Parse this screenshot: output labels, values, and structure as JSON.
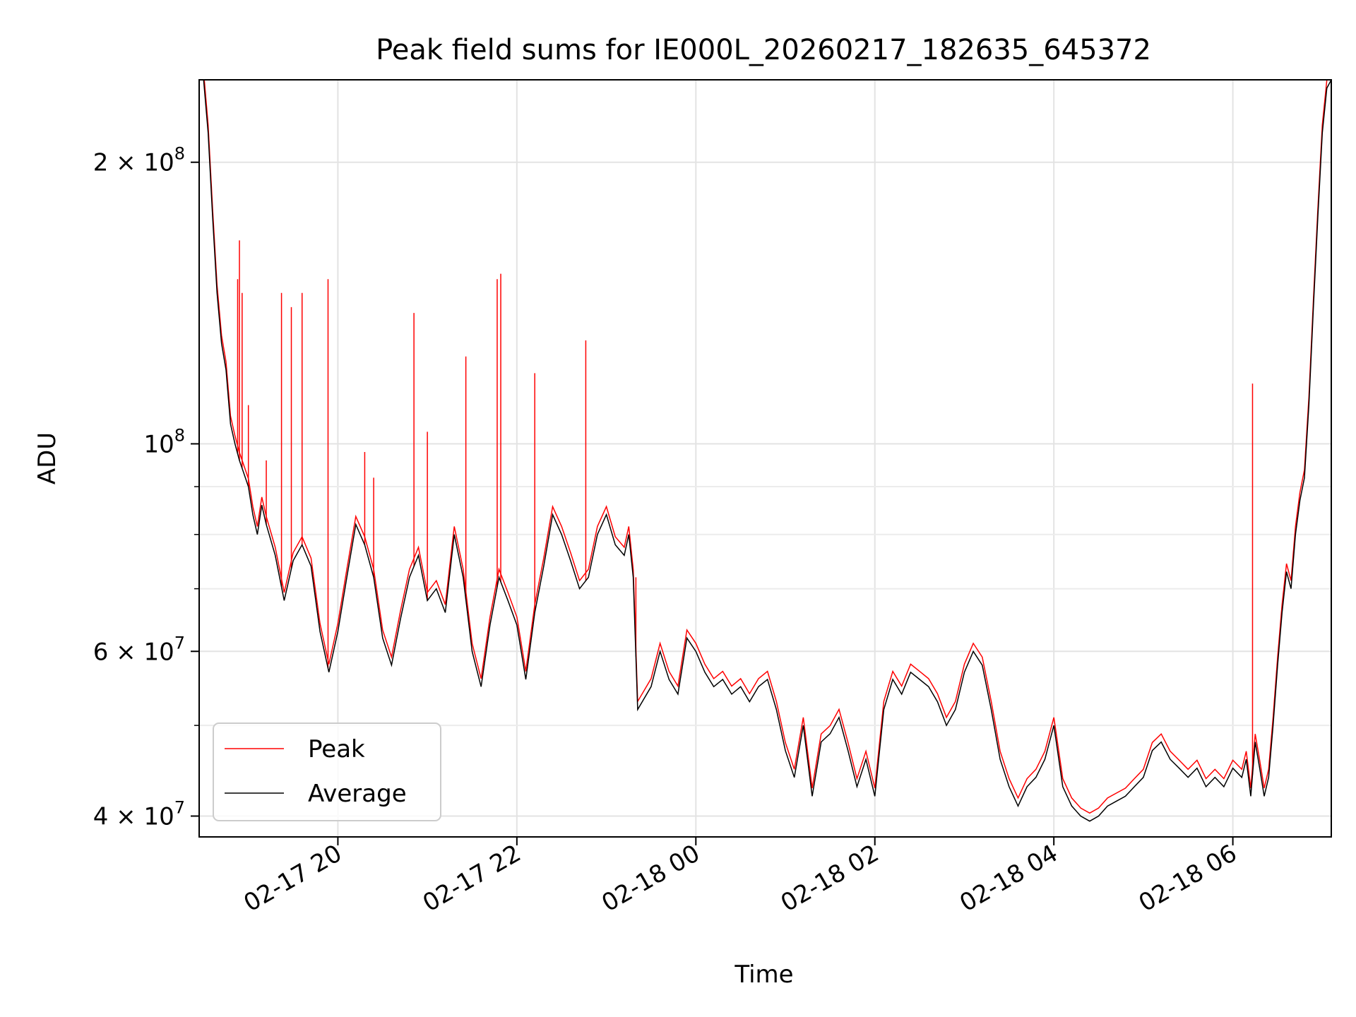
{
  "chart_data": {
    "type": "line",
    "title": "Peak field sums for IE000L_20260217_182635_645372",
    "xlabel": "Time",
    "ylabel": "ADU",
    "yscale": "log",
    "ylim": [
      38000000,
      245000000
    ],
    "xlim_hours": [
      18.45,
      31.1
    ],
    "grid": true,
    "legend": {
      "location": "lower-left",
      "entries": [
        "Peak",
        "Average"
      ]
    },
    "x_ticks": [
      {
        "hour": 20,
        "label": "02-17 20"
      },
      {
        "hour": 22,
        "label": "02-17 22"
      },
      {
        "hour": 24,
        "label": "02-18 00"
      },
      {
        "hour": 26,
        "label": "02-18 02"
      },
      {
        "hour": 28,
        "label": "02-18 04"
      },
      {
        "hour": 30,
        "label": "02-18 06"
      }
    ],
    "y_ticks": [
      {
        "value": 200000000,
        "mant": "2",
        "exp": "8"
      },
      {
        "value": 100000000,
        "mant": "",
        "exp": "8"
      },
      {
        "value": 60000000,
        "mant": "6",
        "exp": "7"
      },
      {
        "value": 40000000,
        "mant": "4",
        "exp": "7"
      }
    ],
    "y_minor_ticks": [
      50000000,
      70000000,
      80000000,
      90000000
    ],
    "series": [
      {
        "name": "Average",
        "color": "#000000",
        "points": [
          [
            18.5,
            245000000
          ],
          [
            18.55,
            215000000
          ],
          [
            18.6,
            175000000
          ],
          [
            18.65,
            145000000
          ],
          [
            18.7,
            128000000
          ],
          [
            18.75,
            120000000
          ],
          [
            18.8,
            105000000
          ],
          [
            18.85,
            100000000
          ],
          [
            18.9,
            96000000
          ],
          [
            19.0,
            90000000
          ],
          [
            19.05,
            84000000
          ],
          [
            19.1,
            80000000
          ],
          [
            19.15,
            86000000
          ],
          [
            19.2,
            82000000
          ],
          [
            19.3,
            76000000
          ],
          [
            19.4,
            68000000
          ],
          [
            19.5,
            75000000
          ],
          [
            19.6,
            78000000
          ],
          [
            19.7,
            74000000
          ],
          [
            19.8,
            63000000
          ],
          [
            19.9,
            57000000
          ],
          [
            20.0,
            63000000
          ],
          [
            20.1,
            72000000
          ],
          [
            20.2,
            82000000
          ],
          [
            20.3,
            78000000
          ],
          [
            20.4,
            72000000
          ],
          [
            20.5,
            62000000
          ],
          [
            20.6,
            58000000
          ],
          [
            20.7,
            65000000
          ],
          [
            20.8,
            72000000
          ],
          [
            20.9,
            76000000
          ],
          [
            21.0,
            68000000
          ],
          [
            21.1,
            70000000
          ],
          [
            21.2,
            66000000
          ],
          [
            21.3,
            80000000
          ],
          [
            21.4,
            72000000
          ],
          [
            21.5,
            60000000
          ],
          [
            21.6,
            55000000
          ],
          [
            21.7,
            64000000
          ],
          [
            21.8,
            72000000
          ],
          [
            21.9,
            68000000
          ],
          [
            22.0,
            64000000
          ],
          [
            22.1,
            56000000
          ],
          [
            22.2,
            66000000
          ],
          [
            22.3,
            74000000
          ],
          [
            22.4,
            84000000
          ],
          [
            22.5,
            80000000
          ],
          [
            22.6,
            75000000
          ],
          [
            22.7,
            70000000
          ],
          [
            22.8,
            72000000
          ],
          [
            22.9,
            80000000
          ],
          [
            23.0,
            84000000
          ],
          [
            23.1,
            78000000
          ],
          [
            23.2,
            76000000
          ],
          [
            23.25,
            80000000
          ],
          [
            23.3,
            72000000
          ],
          [
            23.35,
            52000000
          ],
          [
            23.5,
            55000000
          ],
          [
            23.6,
            60000000
          ],
          [
            23.7,
            56000000
          ],
          [
            23.8,
            54000000
          ],
          [
            23.9,
            62000000
          ],
          [
            24.0,
            60000000
          ],
          [
            24.1,
            57000000
          ],
          [
            24.2,
            55000000
          ],
          [
            24.3,
            56000000
          ],
          [
            24.4,
            54000000
          ],
          [
            24.5,
            55000000
          ],
          [
            24.6,
            53000000
          ],
          [
            24.7,
            55000000
          ],
          [
            24.8,
            56000000
          ],
          [
            24.9,
            52000000
          ],
          [
            25.0,
            47000000
          ],
          [
            25.1,
            44000000
          ],
          [
            25.2,
            50000000
          ],
          [
            25.3,
            42000000
          ],
          [
            25.4,
            48000000
          ],
          [
            25.5,
            49000000
          ],
          [
            25.6,
            51000000
          ],
          [
            25.7,
            47000000
          ],
          [
            25.8,
            43000000
          ],
          [
            25.9,
            46000000
          ],
          [
            26.0,
            42000000
          ],
          [
            26.1,
            52000000
          ],
          [
            26.2,
            56000000
          ],
          [
            26.3,
            54000000
          ],
          [
            26.4,
            57000000
          ],
          [
            26.5,
            56000000
          ],
          [
            26.6,
            55000000
          ],
          [
            26.7,
            53000000
          ],
          [
            26.8,
            50000000
          ],
          [
            26.9,
            52000000
          ],
          [
            27.0,
            57000000
          ],
          [
            27.1,
            60000000
          ],
          [
            27.2,
            58000000
          ],
          [
            27.3,
            52000000
          ],
          [
            27.4,
            46000000
          ],
          [
            27.5,
            43000000
          ],
          [
            27.6,
            41000000
          ],
          [
            27.7,
            43000000
          ],
          [
            27.8,
            44000000
          ],
          [
            27.9,
            46000000
          ],
          [
            28.0,
            50000000
          ],
          [
            28.1,
            43000000
          ],
          [
            28.2,
            41000000
          ],
          [
            28.3,
            40000000
          ],
          [
            28.4,
            39500000
          ],
          [
            28.5,
            40000000
          ],
          [
            28.6,
            41000000
          ],
          [
            28.7,
            41500000
          ],
          [
            28.8,
            42000000
          ],
          [
            28.9,
            43000000
          ],
          [
            29.0,
            44000000
          ],
          [
            29.1,
            47000000
          ],
          [
            29.2,
            48000000
          ],
          [
            29.3,
            46000000
          ],
          [
            29.4,
            45000000
          ],
          [
            29.5,
            44000000
          ],
          [
            29.6,
            45000000
          ],
          [
            29.7,
            43000000
          ],
          [
            29.8,
            44000000
          ],
          [
            29.9,
            43000000
          ],
          [
            30.0,
            45000000
          ],
          [
            30.1,
            44000000
          ],
          [
            30.15,
            46000000
          ],
          [
            30.2,
            42000000
          ],
          [
            30.25,
            48000000
          ],
          [
            30.3,
            45000000
          ],
          [
            30.35,
            42000000
          ],
          [
            30.4,
            44000000
          ],
          [
            30.45,
            50000000
          ],
          [
            30.5,
            58000000
          ],
          [
            30.55,
            66000000
          ],
          [
            30.6,
            73000000
          ],
          [
            30.65,
            70000000
          ],
          [
            30.7,
            80000000
          ],
          [
            30.75,
            87000000
          ],
          [
            30.8,
            92000000
          ],
          [
            30.85,
            110000000
          ],
          [
            30.9,
            140000000
          ],
          [
            30.95,
            175000000
          ],
          [
            31.0,
            215000000
          ],
          [
            31.05,
            240000000
          ],
          [
            31.1,
            245000000
          ]
        ]
      },
      {
        "name": "Peak",
        "color": "#ff0000",
        "spikes": [
          [
            18.88,
            150000000
          ],
          [
            18.9,
            165000000
          ],
          [
            18.93,
            145000000
          ],
          [
            19.0,
            110000000
          ],
          [
            19.2,
            96000000
          ],
          [
            19.37,
            145000000
          ],
          [
            19.48,
            140000000
          ],
          [
            19.6,
            145000000
          ],
          [
            19.89,
            150000000
          ],
          [
            20.3,
            98000000
          ],
          [
            20.4,
            92000000
          ],
          [
            20.85,
            138000000
          ],
          [
            21.0,
            103000000
          ],
          [
            21.43,
            124000000
          ],
          [
            21.78,
            150000000
          ],
          [
            21.82,
            152000000
          ],
          [
            22.2,
            119000000
          ],
          [
            22.77,
            129000000
          ],
          [
            23.33,
            72000000
          ],
          [
            30.22,
            116000000
          ]
        ]
      }
    ]
  }
}
